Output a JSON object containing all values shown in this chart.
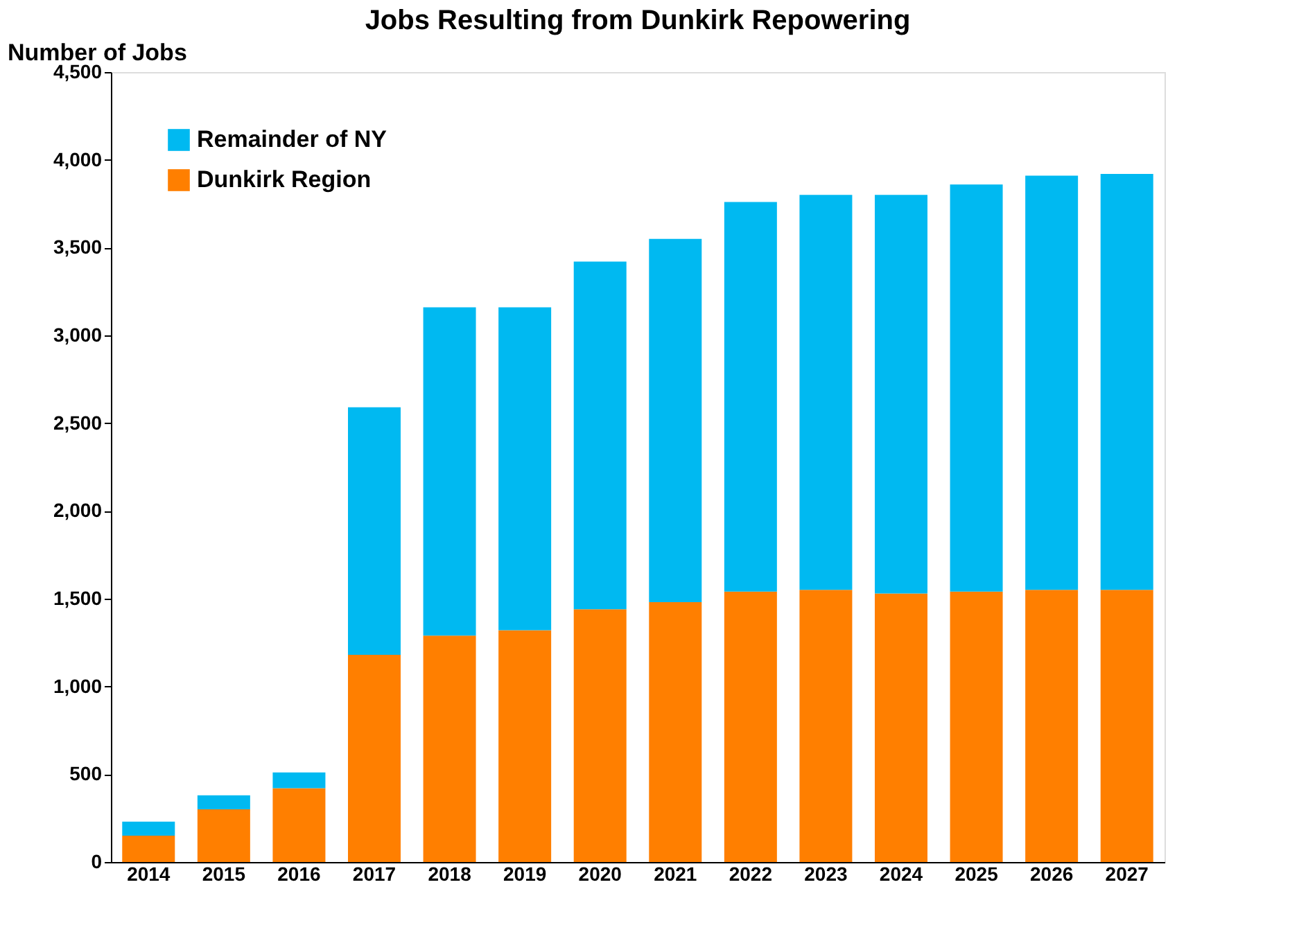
{
  "chart_data": {
    "type": "bar",
    "title": "Jobs Resulting from Dunkirk Repowering",
    "ylabel": "Number of Jobs",
    "categories": [
      "2014",
      "2015",
      "2016",
      "2017",
      "2018",
      "2019",
      "2020",
      "2021",
      "2022",
      "2023",
      "2024",
      "2025",
      "2026",
      "2027"
    ],
    "stacked": true,
    "series": [
      {
        "name": "Dunkirk Region",
        "color": "#ff7f00",
        "values": [
          150,
          300,
          420,
          1180,
          1290,
          1320,
          1440,
          1480,
          1540,
          1550,
          1530,
          1540,
          1550,
          1550
        ]
      },
      {
        "name": "Remainder of NY",
        "color": "#00b9f1",
        "values": [
          80,
          80,
          90,
          1410,
          1870,
          1840,
          1980,
          2070,
          2220,
          2250,
          2270,
          2320,
          2360,
          2370
        ]
      }
    ],
    "ylim": [
      0,
      4500
    ],
    "yticks": [
      {
        "value": 0,
        "label": "0"
      },
      {
        "value": 500,
        "label": "500"
      },
      {
        "value": 1000,
        "label": "1,000"
      },
      {
        "value": 1500,
        "label": "1,500"
      },
      {
        "value": 2000,
        "label": "2,000"
      },
      {
        "value": 2500,
        "label": "2,500"
      },
      {
        "value": 3000,
        "label": "3,000"
      },
      {
        "value": 3500,
        "label": "3,500"
      },
      {
        "value": 4000,
        "label": "4,000"
      },
      {
        "value": 4500,
        "label": "4,500"
      }
    ],
    "grid": false,
    "legend": "top left"
  }
}
